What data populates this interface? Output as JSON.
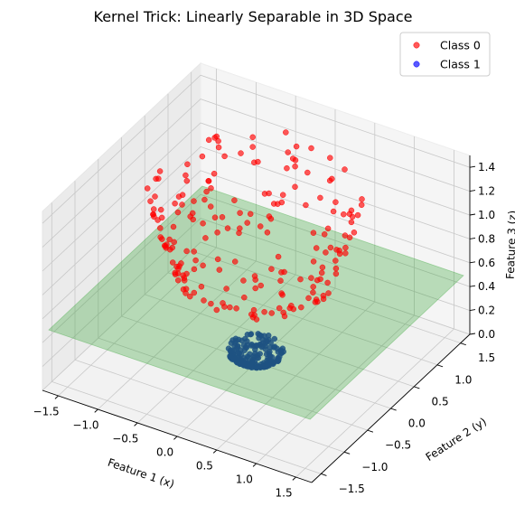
{
  "chart_data": {
    "type": "scatter",
    "projection": "3d",
    "title": "Kernel Trick: Linearly Separable in 3D Space",
    "xlabel": "Feature 1 (x)",
    "ylabel": "Feature 2 (y)",
    "zlabel": "Feature 3 (z)",
    "xlim": [
      -1.7,
      1.7
    ],
    "ylim": [
      -1.7,
      1.7
    ],
    "zlim": [
      0,
      1.5
    ],
    "xticks": [
      "−1.5",
      "−1.0",
      "−0.5",
      "0.0",
      "0.5",
      "1.0",
      "1.5"
    ],
    "yticks": [
      "−1.5",
      "−1.0",
      "−0.5",
      "0.0",
      "0.5",
      "1.0",
      "1.5"
    ],
    "zticks": [
      "0.0",
      "0.2",
      "0.4",
      "0.6",
      "0.8",
      "1.0",
      "1.2",
      "1.4"
    ],
    "xtick_values": [
      -1.5,
      -1.0,
      -0.5,
      0.0,
      0.5,
      1.0,
      1.5
    ],
    "ytick_values": [
      -1.5,
      -1.0,
      -0.5,
      0.0,
      0.5,
      1.0,
      1.5
    ],
    "ztick_values": [
      0.0,
      0.2,
      0.4,
      0.6,
      0.8,
      1.0,
      1.2,
      1.4
    ],
    "grid": true,
    "legend_position": "top-right",
    "decision_plane": {
      "z": 0.5,
      "color": "#2ca02c",
      "opacity": 0.3
    },
    "series": [
      {
        "name": "Class 0",
        "color": "#ff0000",
        "surface": "z = x^2 + y^2",
        "radius_range": [
          0.85,
          1.2
        ],
        "count": 200
      },
      {
        "name": "Class 1",
        "color": "#0000ff",
        "surface": "z = x^2 + y^2",
        "radius_range": [
          0.0,
          0.32
        ],
        "count": 200
      }
    ]
  }
}
